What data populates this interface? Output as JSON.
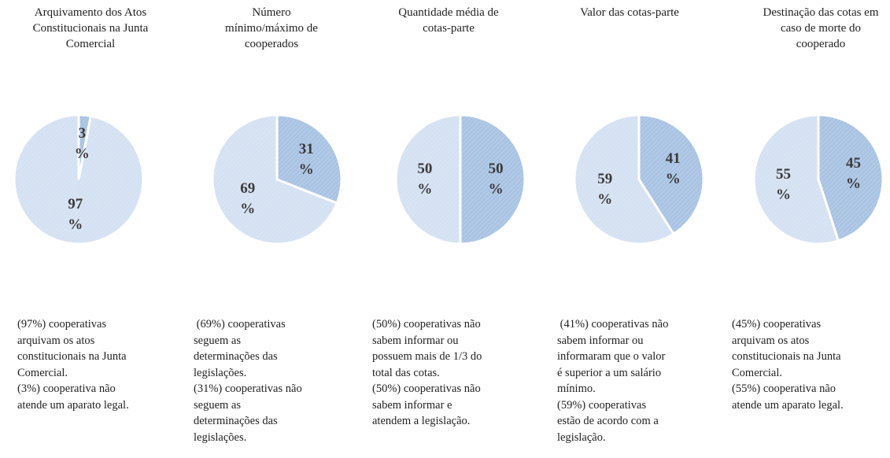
{
  "chart_data": [
    {
      "type": "pie",
      "title": [
        "Arquivamento dos Atos",
        "Constitucionais na Junta",
        "Comercial"
      ],
      "values": [
        3,
        97
      ],
      "value_labels": [
        "3\n%",
        "97\n%"
      ],
      "colors": [
        "#a9c3e3",
        "#d4e1f2"
      ],
      "caption": [
        "(97%) cooperativas",
        "arquivam os atos",
        "constitucionais na Junta",
        "Comercial.",
        "(3%) cooperativa não",
        "atende um aparato legal."
      ]
    },
    {
      "type": "pie",
      "title": [
        "Número",
        "mínimo/máximo de",
        "cooperados"
      ],
      "values": [
        31,
        69
      ],
      "value_labels": [
        "31\n%",
        "69\n%"
      ],
      "colors": [
        "#a9c3e3",
        "#d4e1f2"
      ],
      "caption": [
        " (69%) cooperativas",
        "seguem as",
        "determinações das",
        "legislações.",
        "(31%) cooperativas não",
        "seguem as",
        "determinações das",
        "legislações."
      ]
    },
    {
      "type": "pie",
      "title": [
        "Quantidade média de",
        "cotas-parte"
      ],
      "values": [
        50,
        50
      ],
      "value_labels": [
        "50\n%",
        "50\n%"
      ],
      "colors": [
        "#a9c3e3",
        "#d4e1f2"
      ],
      "caption": [
        "(50%) cooperativas não",
        "sabem informar ou",
        "possuem mais de 1/3 do",
        "total das cotas.",
        "(50%) cooperativas não",
        "sabem informar e",
        "atendem a legislação."
      ]
    },
    {
      "type": "pie",
      "title": [
        "Valor das cotas-parte"
      ],
      "values": [
        41,
        59
      ],
      "value_labels": [
        "41\n%",
        "59\n%"
      ],
      "colors": [
        "#a9c3e3",
        "#d4e1f2"
      ],
      "caption": [
        " (41%) cooperativas não",
        "sabem informar ou",
        "informaram que o valor",
        "é superior a um salário",
        "mínimo.",
        "(59%) cooperativas",
        "estão de acordo com a",
        "legislação."
      ]
    },
    {
      "type": "pie",
      "title": [
        "Destinação das cotas em",
        "caso de morte do",
        "cooperado"
      ],
      "values": [
        45,
        55
      ],
      "value_labels": [
        "45\n%",
        "55\n%"
      ],
      "colors": [
        "#a9c3e3",
        "#d4e1f2"
      ],
      "caption": [
        "(45%) cooperativas",
        "arquivam os atos",
        "constitucionais na Junta",
        "Comercial.",
        "(55%) cooperativa não",
        "atende um aparato legal."
      ]
    }
  ]
}
